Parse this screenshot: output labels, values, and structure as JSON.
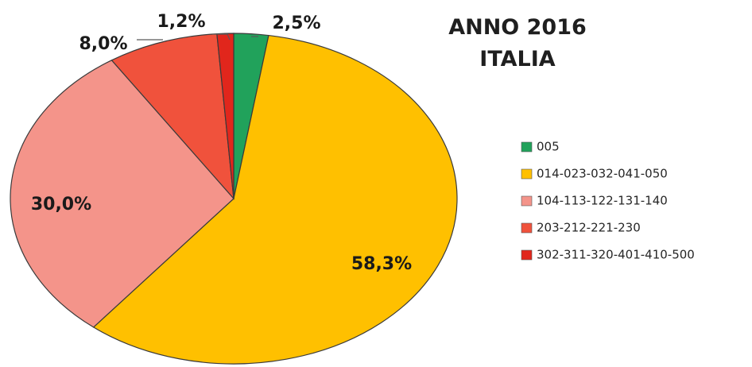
{
  "chart_data": {
    "type": "pie",
    "title": [
      "ANNO 2016",
      "ITALIA"
    ],
    "categories": [
      "005",
      "014-023-032-041-050",
      "104-113-122-131-140",
      "203-212-221-230",
      "302-311-320-401-410-500"
    ],
    "values": [
      2.5,
      58.3,
      30.0,
      8.0,
      1.2
    ],
    "labels": [
      "2,5%",
      "58,3%",
      "30,0%",
      "8,0%",
      "1,2%"
    ],
    "colors": [
      "#21a25b",
      "#ffc000",
      "#f4948a",
      "#f0523c",
      "#e1261c"
    ],
    "legend_position": "right"
  }
}
